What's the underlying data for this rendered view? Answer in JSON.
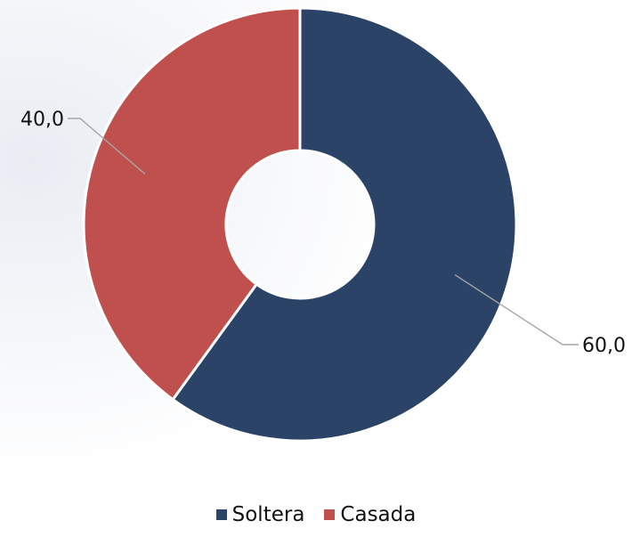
{
  "chart_data": {
    "type": "pie",
    "variant": "donut",
    "categories": [
      "Soltera",
      "Casada"
    ],
    "values": [
      60.0,
      40.0
    ],
    "data_labels": [
      "60,0",
      "40,0"
    ],
    "colors": [
      "#2a4366",
      "#c0504d"
    ],
    "legend_position": "bottom"
  },
  "legend": {
    "items": [
      {
        "label": "Soltera",
        "color": "#2a4366"
      },
      {
        "label": "Casada",
        "color": "#c0504d"
      }
    ]
  }
}
